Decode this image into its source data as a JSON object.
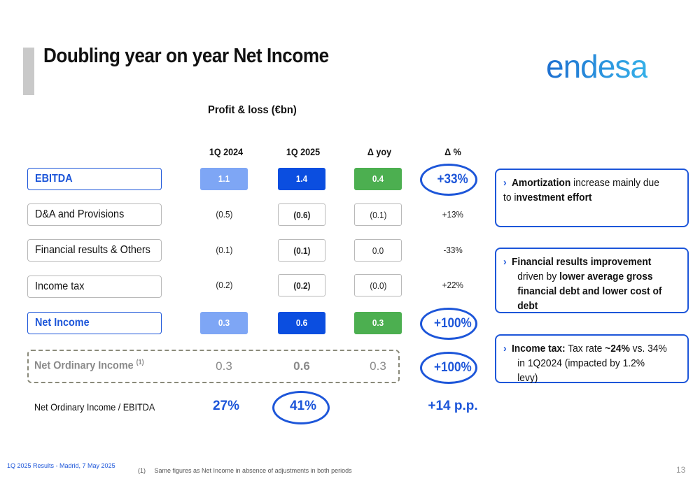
{
  "title": "Doubling year on year Net Income",
  "logo": "endesa",
  "pl_title": "Profit & loss (€bn)",
  "columns": [
    "1Q 2024",
    "1Q 2025",
    "Δ yoy",
    "Δ %"
  ],
  "rows": [
    {
      "label": "EBITDA",
      "q24": "1.1",
      "q25": "1.4",
      "yoy": "0.4",
      "pct": "+33%"
    },
    {
      "label": "D&A and Provisions",
      "q24": "(0.5)",
      "q25": "(0.6)",
      "yoy": "(0.1)",
      "pct": "+13%"
    },
    {
      "label": "Financial results & Others",
      "q24": "(0.1)",
      "q25": "(0.1)",
      "yoy": "0.0",
      "pct": "-33%"
    },
    {
      "label": "Income tax",
      "q24": "(0.2)",
      "q25": "(0.2)",
      "yoy": "(0.0)",
      "pct": "+22%"
    },
    {
      "label": "Net Income",
      "q24": "0.3",
      "q25": "0.6",
      "yoy": "0.3",
      "pct": "+100%"
    }
  ],
  "ordinary": {
    "label": "Net Ordinary Income",
    "sup": "(1)",
    "q24": "0.3",
    "q25": "0.6",
    "yoy": "0.3",
    "pct": "+100%"
  },
  "ratio": {
    "label": "Net Ordinary Income / EBITDA",
    "q24": "27%",
    "q25": "41%",
    "delta": "+14 p.p."
  },
  "notes": [
    {
      "b1": "Amortization",
      "t1": " increase mainly due to i",
      "b2": "nvestment effort",
      "t2": ""
    },
    {
      "b1": "Financial results improvement",
      "t1": " driven by ",
      "b2": "lower average gross financial debt and lower cost of debt",
      "t2": ""
    },
    {
      "b1": "Income tax:",
      "t1": " Tax rate ",
      "b2": "~24%",
      "t2": " vs. 34% in 1Q2024 (impacted by 1.2% levy)"
    }
  ],
  "footer": {
    "left": "1Q 2025 Results - Madrid, 7 May 2025",
    "footnote": "(1)     Same figures as Net Income in absence of adjustments in both periods",
    "page": "13"
  }
}
